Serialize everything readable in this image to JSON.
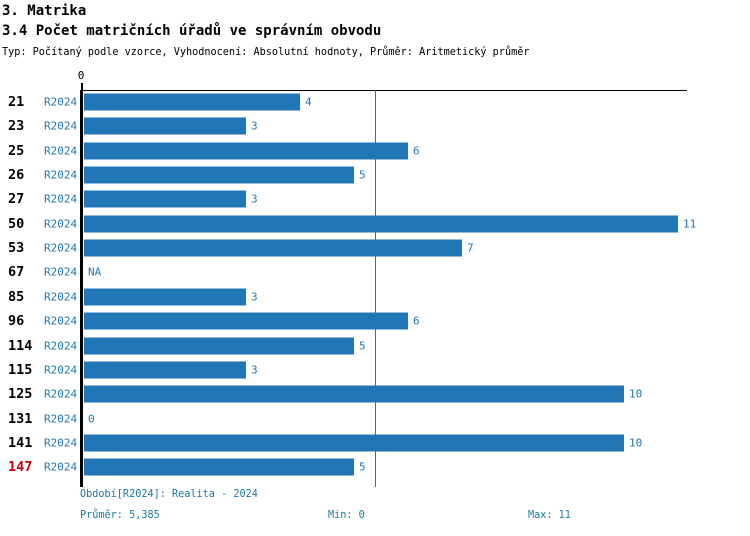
{
  "header": {
    "title": "3. Matrika",
    "subtitle": "3.4 Počet matričních úřadů ve správním obvodu",
    "meta": "Typ: Počítaný podle vzorce, Vyhodnocení: Absolutní hodnoty, Průměr: Aritmetický průměr"
  },
  "chart_data": {
    "type": "bar",
    "orientation": "horizontal",
    "title": "3.4 Počet matričních úřadů ve správním obvodu",
    "axis_origin_label": "0",
    "series_label": "R2024",
    "categories": [
      "21",
      "23",
      "25",
      "26",
      "27",
      "50",
      "53",
      "67",
      "85",
      "96",
      "114",
      "115",
      "125",
      "131",
      "141",
      "147"
    ],
    "values": [
      4,
      3,
      6,
      5,
      3,
      11,
      7,
      null,
      3,
      6,
      5,
      3,
      10,
      0,
      10,
      5
    ],
    "value_labels": [
      "4",
      "3",
      "6",
      "5",
      "3",
      "11",
      "7",
      "NA",
      "3",
      "6",
      "5",
      "3",
      "10",
      "0",
      "10",
      "5"
    ],
    "highlighted_categories": [
      "147"
    ],
    "average": 5.385,
    "min": 0,
    "max": 11,
    "xlim": [
      0,
      11
    ],
    "grid": false,
    "legend_position": "none",
    "colors": {
      "bar": "#2176b5",
      "average_line": "#2176b5",
      "category_label": "#000000",
      "highlight_label": "#cc0000",
      "series_label": "#2176b5",
      "value_label": "#2176b5",
      "axis": "#000000"
    }
  },
  "footer": {
    "period": "Období[R2024]: Realita - 2024",
    "average_text": "Průměr: 5,385",
    "min_text": "Min: 0",
    "max_text": "Max: 11",
    "text_color": "#1a79a3"
  }
}
